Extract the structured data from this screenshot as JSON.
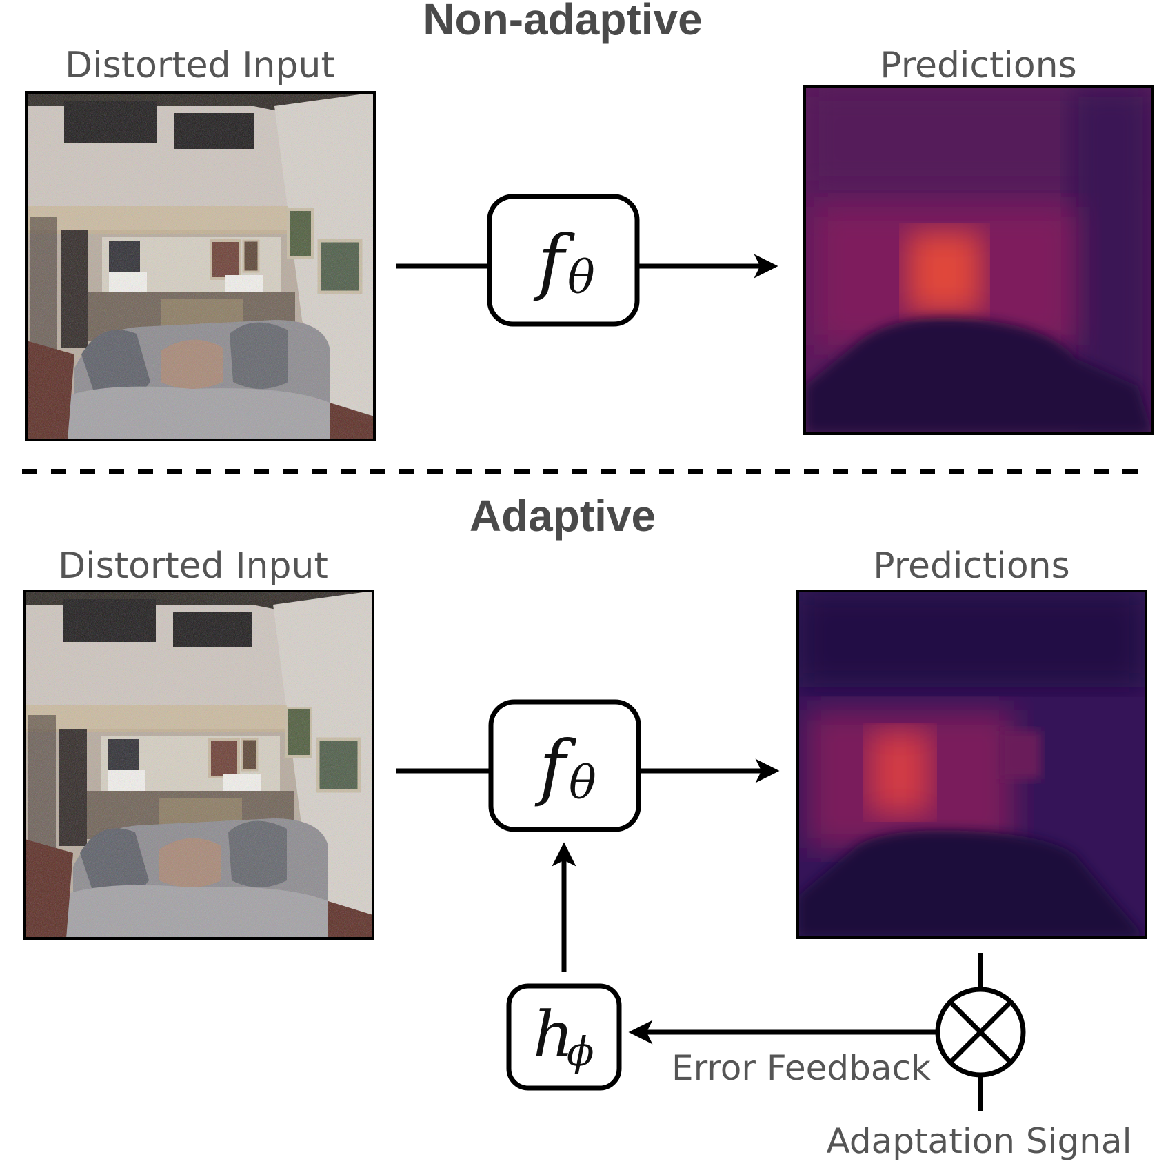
{
  "diagram": {
    "top": {
      "title": "Non-adaptive",
      "input_label": "Distorted Input",
      "output_label": "Predictions",
      "model": {
        "symbol": "f",
        "subscript": "θ"
      }
    },
    "bottom": {
      "title": "Adaptive",
      "input_label": "Distorted Input",
      "output_label": "Predictions",
      "model": {
        "symbol": "f",
        "subscript": "θ"
      },
      "adapter": {
        "symbol": "h",
        "subscript": "ϕ"
      },
      "feedback_label": "Error Feedback",
      "signal_label": "Adaptation Signal"
    }
  },
  "colors": {
    "title": "#4a4a4a",
    "label": "#555555",
    "stroke": "#000000",
    "depth_dark": "#1c0b3a",
    "depth_mid": "#6b1b63",
    "depth_hot": "#e0463a"
  },
  "icons": {
    "combine": "circled-x-icon",
    "room_photo": "living-room-photo",
    "depth_map": "depth-heatmap"
  }
}
